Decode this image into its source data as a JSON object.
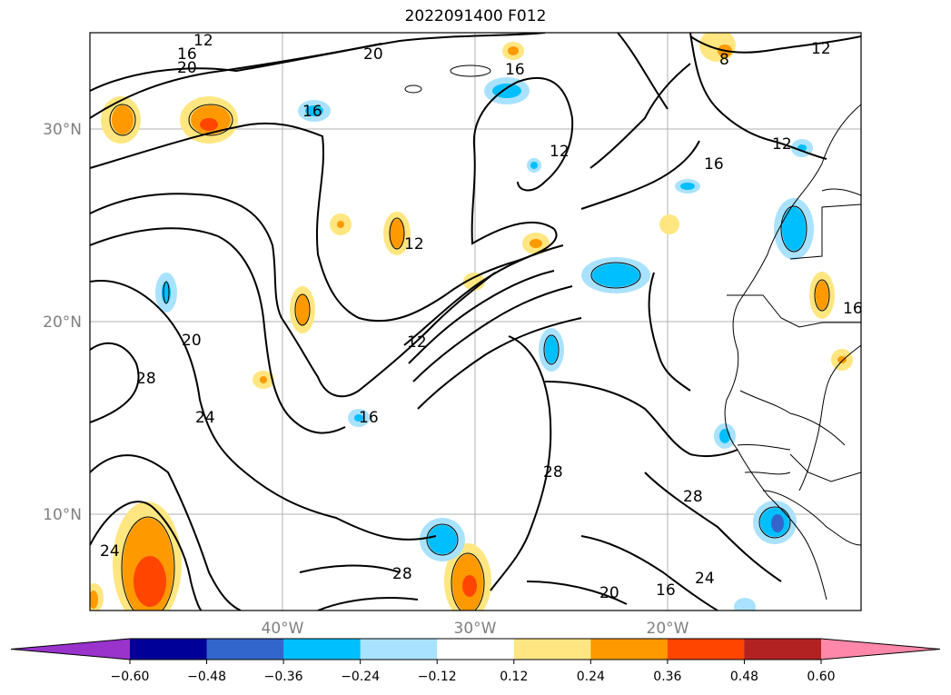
{
  "title": "2022091400 F012",
  "map": {
    "lat_ticks": [
      "30°N",
      "20°N",
      "10°N"
    ],
    "lon_ticks": [
      "40°W",
      "30°W",
      "20°W"
    ],
    "contour_labels": [
      "12",
      "16",
      "20",
      "20",
      "16",
      "16",
      "12",
      "12",
      "8",
      "16",
      "12",
      "12",
      "20",
      "28",
      "24",
      "16",
      "12",
      "28",
      "28",
      "24",
      "28",
      "20",
      "16",
      "24",
      "16"
    ]
  },
  "colorbar": {
    "ticks": [
      "−0.60",
      "−0.48",
      "−0.36",
      "−0.24",
      "−0.12",
      "0.12",
      "0.24",
      "0.36",
      "0.48",
      "0.60"
    ],
    "colors": [
      "#9933cc",
      "#000099",
      "#3366cc",
      "#00bfff",
      "#a9e2ff",
      "#ffffff",
      "#ffe680",
      "#ff9900",
      "#ff4500",
      "#b22222",
      "#ff88aa"
    ]
  }
}
